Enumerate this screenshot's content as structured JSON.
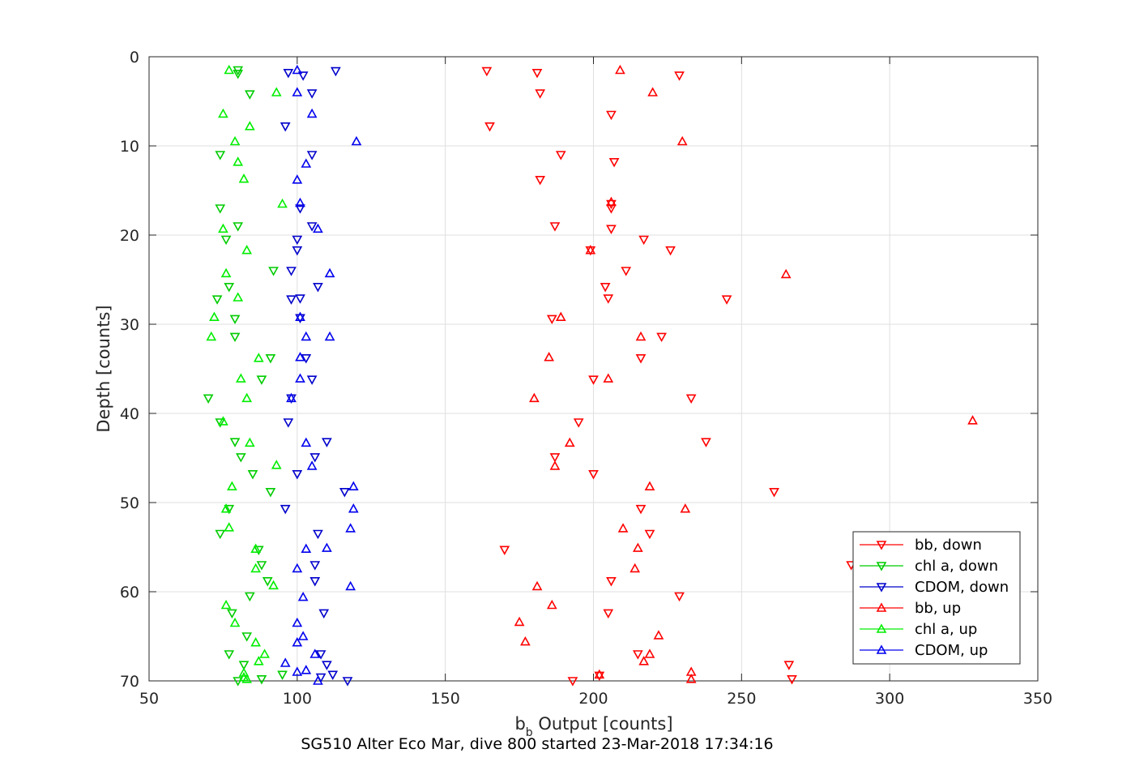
{
  "chart_data": {
    "type": "scatter",
    "xlabel": "b",
    "xlabel_sub": "b",
    "xlabel_rest": " Output [counts]",
    "ylabel": "Depth [counts]",
    "caption": "SG510 Alter Eco Mar, dive 800 started 23-Mar-2018 17:34:16",
    "xlim": [
      50,
      350
    ],
    "ylim": [
      0,
      70
    ],
    "y_reversed": true,
    "xticks": [
      50,
      100,
      150,
      200,
      250,
      300,
      350
    ],
    "yticks": [
      0,
      10,
      20,
      30,
      40,
      50,
      60,
      70
    ],
    "grid": true,
    "legend_position": "bottom-right",
    "series": [
      {
        "name": "bb, down",
        "color": "#ff0000",
        "marker": "triangle-down",
        "points": [
          [
            164,
            1.6
          ],
          [
            181,
            1.8
          ],
          [
            229,
            2.1
          ],
          [
            182,
            4.1
          ],
          [
            206,
            6.5
          ],
          [
            165,
            7.8
          ],
          [
            189,
            11
          ],
          [
            207,
            11.8
          ],
          [
            182,
            13.8
          ],
          [
            206,
            16.5
          ],
          [
            206,
            17
          ],
          [
            187,
            19
          ],
          [
            206,
            19.3
          ],
          [
            217,
            20.5
          ],
          [
            199,
            21.7
          ],
          [
            226,
            21.7
          ],
          [
            211,
            24
          ],
          [
            204,
            25.8
          ],
          [
            205,
            27.1
          ],
          [
            245,
            27.2
          ],
          [
            186,
            29.4
          ],
          [
            223,
            31.4
          ],
          [
            216,
            33.8
          ],
          [
            200,
            36.2
          ],
          [
            233,
            38.3
          ],
          [
            195,
            41
          ],
          [
            238,
            43.2
          ],
          [
            187,
            44.9
          ],
          [
            200,
            46.8
          ],
          [
            261,
            48.8
          ],
          [
            216,
            50.7
          ],
          [
            219,
            53.5
          ],
          [
            170,
            55.3
          ],
          [
            287,
            57
          ],
          [
            206,
            58.8
          ],
          [
            229,
            60.5
          ],
          [
            205,
            62.4
          ],
          [
            215,
            67
          ],
          [
            266,
            68.2
          ],
          [
            202,
            69.4
          ],
          [
            193,
            70
          ],
          [
            267,
            69.8
          ]
        ]
      },
      {
        "name": "chl a, down",
        "color": "#00cc00",
        "marker": "triangle-down",
        "points": [
          [
            80,
            1.5
          ],
          [
            80,
            1.9
          ],
          [
            84,
            4.2
          ],
          [
            74,
            11
          ],
          [
            74,
            17
          ],
          [
            80,
            19
          ],
          [
            76,
            20.5
          ],
          [
            92,
            24
          ],
          [
            77,
            25.8
          ],
          [
            73,
            27.2
          ],
          [
            79,
            29.4
          ],
          [
            79,
            31.4
          ],
          [
            91,
            33.8
          ],
          [
            88,
            36.2
          ],
          [
            70,
            38.3
          ],
          [
            74,
            41
          ],
          [
            79,
            43.2
          ],
          [
            81,
            44.9
          ],
          [
            85,
            46.8
          ],
          [
            91,
            48.8
          ],
          [
            77,
            50.7
          ],
          [
            74,
            53.5
          ],
          [
            87,
            55.3
          ],
          [
            88,
            57
          ],
          [
            90,
            58.8
          ],
          [
            84,
            60.5
          ],
          [
            78,
            62.4
          ],
          [
            83,
            65
          ],
          [
            77,
            67
          ],
          [
            82,
            68.2
          ],
          [
            95,
            69.3
          ],
          [
            88,
            69.8
          ],
          [
            80,
            70
          ]
        ]
      },
      {
        "name": "CDOM, down",
        "color": "#0000cc",
        "marker": "triangle-down",
        "points": [
          [
            113,
            1.6
          ],
          [
            97,
            1.8
          ],
          [
            102,
            2.1
          ],
          [
            105,
            4.1
          ],
          [
            96,
            7.8
          ],
          [
            105,
            11
          ],
          [
            101,
            17
          ],
          [
            105,
            19
          ],
          [
            100,
            20.5
          ],
          [
            100,
            21.7
          ],
          [
            98,
            24
          ],
          [
            107,
            25.8
          ],
          [
            101,
            27.1
          ],
          [
            98,
            27.2
          ],
          [
            101,
            29.3
          ],
          [
            103,
            33.8
          ],
          [
            105,
            36.2
          ],
          [
            98,
            38.3
          ],
          [
            97,
            41
          ],
          [
            110,
            43.2
          ],
          [
            106,
            44.9
          ],
          [
            100,
            46.8
          ],
          [
            116,
            48.8
          ],
          [
            96,
            50.7
          ],
          [
            107,
            53.5
          ],
          [
            106,
            57
          ],
          [
            106,
            58.8
          ],
          [
            109,
            62.4
          ],
          [
            108,
            67
          ],
          [
            110,
            68.2
          ],
          [
            108,
            69.6
          ],
          [
            112,
            69.3
          ],
          [
            117,
            70
          ]
        ]
      },
      {
        "name": "bb, up",
        "color": "#ff0000",
        "marker": "triangle-up",
        "points": [
          [
            209,
            1.5
          ],
          [
            220,
            4
          ],
          [
            230,
            9.5
          ],
          [
            206,
            16.3
          ],
          [
            199,
            21.7
          ],
          [
            265,
            24.4
          ],
          [
            189,
            29.2
          ],
          [
            216,
            31.4
          ],
          [
            185,
            33.7
          ],
          [
            205,
            36.1
          ],
          [
            180,
            38.3
          ],
          [
            328,
            40.8
          ],
          [
            192,
            43.3
          ],
          [
            187,
            45.9
          ],
          [
            219,
            48.2
          ],
          [
            231,
            50.7
          ],
          [
            210,
            52.9
          ],
          [
            215,
            55.1
          ],
          [
            214,
            57.4
          ],
          [
            181,
            59.4
          ],
          [
            186,
            61.5
          ],
          [
            175,
            63.4
          ],
          [
            177,
            65.6
          ],
          [
            222,
            64.9
          ],
          [
            219,
            67
          ],
          [
            217,
            67.8
          ],
          [
            233,
            69
          ],
          [
            233,
            69.8
          ],
          [
            202,
            69.3
          ]
        ]
      },
      {
        "name": "chl a, up",
        "color": "#00ee00",
        "marker": "triangle-up",
        "points": [
          [
            77,
            1.5
          ],
          [
            93,
            4
          ],
          [
            75,
            6.4
          ],
          [
            84,
            7.8
          ],
          [
            79,
            9.5
          ],
          [
            80,
            11.8
          ],
          [
            82,
            13.7
          ],
          [
            95,
            16.5
          ],
          [
            75,
            19.3
          ],
          [
            83,
            21.7
          ],
          [
            76,
            24.3
          ],
          [
            80,
            27
          ],
          [
            72,
            29.2
          ],
          [
            71,
            31.4
          ],
          [
            87,
            33.8
          ],
          [
            81,
            36.1
          ],
          [
            83,
            38.3
          ],
          [
            75,
            40.9
          ],
          [
            84,
            43.3
          ],
          [
            93,
            45.8
          ],
          [
            78,
            48.2
          ],
          [
            76,
            50.7
          ],
          [
            77,
            52.8
          ],
          [
            86,
            55.2
          ],
          [
            86,
            57.4
          ],
          [
            92,
            59.3
          ],
          [
            76,
            61.5
          ],
          [
            79,
            63.5
          ],
          [
            86,
            65.7
          ],
          [
            89,
            67
          ],
          [
            87,
            67.8
          ],
          [
            82,
            69.1
          ],
          [
            82,
            69.6
          ],
          [
            83,
            69.8
          ]
        ]
      },
      {
        "name": "CDOM, up",
        "color": "#0000ee",
        "marker": "triangle-up",
        "points": [
          [
            100,
            1.5
          ],
          [
            100,
            4
          ],
          [
            105,
            6.4
          ],
          [
            120,
            9.5
          ],
          [
            103,
            12
          ],
          [
            100,
            13.8
          ],
          [
            101,
            16.4
          ],
          [
            107,
            19.3
          ],
          [
            111,
            24.3
          ],
          [
            101,
            29.2
          ],
          [
            103,
            31.4
          ],
          [
            111,
            31.4
          ],
          [
            101,
            33.7
          ],
          [
            101,
            36.1
          ],
          [
            98,
            38.3
          ],
          [
            103,
            43.3
          ],
          [
            105,
            45.9
          ],
          [
            119,
            48.2
          ],
          [
            119,
            50.7
          ],
          [
            118,
            52.9
          ],
          [
            110,
            55.1
          ],
          [
            103,
            55.2
          ],
          [
            100,
            57.4
          ],
          [
            118,
            59.4
          ],
          [
            102,
            60.6
          ],
          [
            100,
            63.5
          ],
          [
            102,
            65
          ],
          [
            100,
            65.7
          ],
          [
            106,
            67
          ],
          [
            96,
            68
          ],
          [
            100,
            69
          ],
          [
            107,
            70
          ],
          [
            103,
            68.8
          ]
        ]
      }
    ]
  }
}
